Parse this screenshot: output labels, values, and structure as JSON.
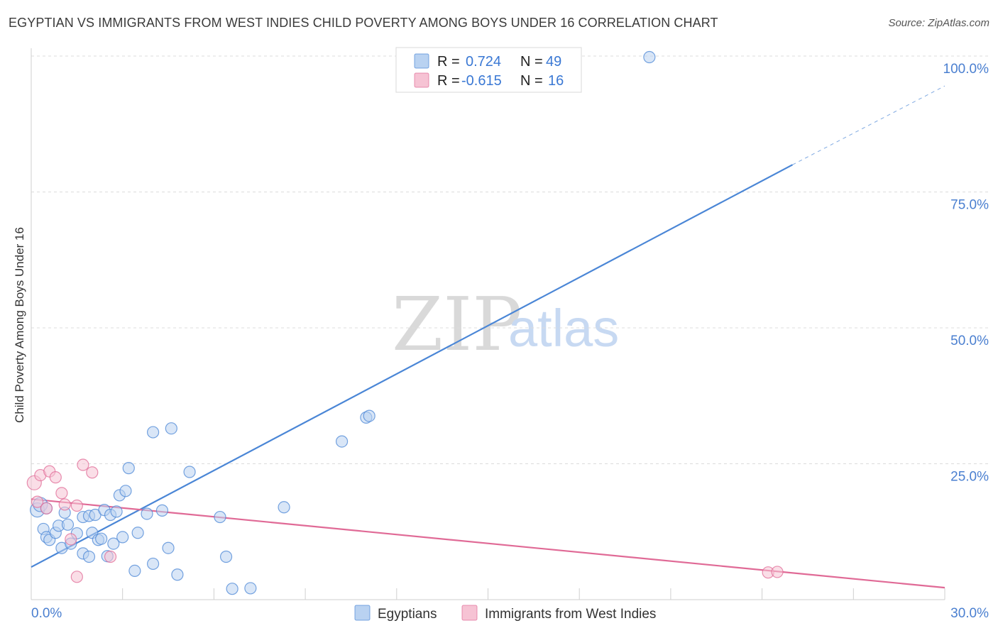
{
  "header": {
    "title": "EGYPTIAN VS IMMIGRANTS FROM WEST INDIES CHILD POVERTY AMONG BOYS UNDER 16 CORRELATION CHART",
    "source": "Source: ZipAtlas.com"
  },
  "watermark": {
    "zip": "ZIP",
    "atlas": "atlas"
  },
  "legend": {
    "rows": [
      {
        "r_label": "R =",
        "r_value": "0.724",
        "n_label": "N =",
        "n_value": "49",
        "color": "#a9c8ef"
      },
      {
        "r_label": "R =",
        "r_value": "-0.615",
        "n_label": "N =",
        "n_value": "16",
        "color": "#f6bfd0"
      }
    ]
  },
  "bottom_legend": {
    "series1": "Egyptians",
    "series2": "Immigrants from West Indies"
  },
  "chart_data": {
    "type": "scatter",
    "title": "EGYPTIAN VS IMMIGRANTS FROM WEST INDIES CHILD POVERTY AMONG BOYS UNDER 16 CORRELATION CHART",
    "xlabel": "",
    "ylabel": "Child Poverty Among Boys Under 16",
    "xlim": [
      0,
      30
    ],
    "ylim": [
      0,
      100
    ],
    "x_tick_labels": {
      "min": "0.0%",
      "max": "30.0%"
    },
    "y_ticks": [
      {
        "value": 25,
        "label": "25.0%"
      },
      {
        "value": 50,
        "label": "50.0%"
      },
      {
        "value": 75,
        "label": "75.0%"
      },
      {
        "value": 100,
        "label": "100.0%"
      }
    ],
    "series": [
      {
        "name": "Egyptians",
        "color": "#4a86d6",
        "fill": "#b9d2f1",
        "R": 0.724,
        "N": 49,
        "trend": {
          "x0": 0,
          "y0": 6.0,
          "x1": 25.0,
          "y1": 80.0,
          "dash_x1": 30,
          "dash_y1": 94.5
        },
        "points": [
          [
            0.2,
            16.5
          ],
          [
            0.3,
            17.5
          ],
          [
            0.5,
            16.8
          ],
          [
            0.4,
            13.0
          ],
          [
            0.5,
            11.5
          ],
          [
            0.6,
            11.0
          ],
          [
            0.8,
            12.3
          ],
          [
            0.9,
            13.6
          ],
          [
            1.0,
            9.5
          ],
          [
            1.1,
            16.0
          ],
          [
            1.2,
            13.8
          ],
          [
            1.3,
            10.3
          ],
          [
            1.5,
            12.2
          ],
          [
            1.7,
            8.5
          ],
          [
            1.7,
            15.2
          ],
          [
            1.9,
            7.9
          ],
          [
            1.9,
            15.4
          ],
          [
            2.0,
            12.3
          ],
          [
            2.1,
            15.6
          ],
          [
            2.2,
            11.0
          ],
          [
            2.3,
            11.2
          ],
          [
            2.4,
            16.5
          ],
          [
            2.5,
            8.0
          ],
          [
            2.6,
            15.6
          ],
          [
            2.7,
            10.3
          ],
          [
            2.8,
            16.2
          ],
          [
            2.9,
            19.2
          ],
          [
            3.0,
            11.5
          ],
          [
            3.1,
            20.0
          ],
          [
            3.2,
            24.2
          ],
          [
            3.4,
            5.3
          ],
          [
            3.5,
            12.3
          ],
          [
            3.8,
            15.8
          ],
          [
            4.0,
            30.8
          ],
          [
            4.0,
            6.6
          ],
          [
            4.3,
            16.4
          ],
          [
            4.5,
            9.5
          ],
          [
            4.6,
            31.5
          ],
          [
            4.8,
            4.6
          ],
          [
            5.2,
            23.5
          ],
          [
            6.2,
            15.2
          ],
          [
            6.4,
            7.9
          ],
          [
            6.6,
            2.0
          ],
          [
            7.2,
            2.1
          ],
          [
            8.3,
            17.0
          ],
          [
            11.0,
            33.5
          ],
          [
            11.1,
            33.8
          ],
          [
            10.2,
            29.1
          ],
          [
            20.3,
            99.8
          ]
        ]
      },
      {
        "name": "Immigrants from West Indies",
        "color": "#e06a96",
        "fill": "#f6c3d4",
        "R": -0.615,
        "N": 16,
        "trend": {
          "x0": 0,
          "y0": 18.5,
          "x1": 30,
          "y1": 2.2
        },
        "points": [
          [
            0.1,
            21.5
          ],
          [
            0.2,
            18.0
          ],
          [
            0.5,
            16.8
          ],
          [
            0.3,
            22.9
          ],
          [
            0.6,
            23.6
          ],
          [
            0.8,
            22.5
          ],
          [
            1.0,
            19.6
          ],
          [
            1.1,
            17.5
          ],
          [
            1.3,
            11.1
          ],
          [
            1.5,
            17.3
          ],
          [
            1.5,
            4.2
          ],
          [
            1.7,
            24.8
          ],
          [
            2.0,
            23.4
          ],
          [
            2.6,
            7.9
          ],
          [
            24.2,
            5.0
          ],
          [
            24.5,
            5.1
          ]
        ]
      }
    ]
  }
}
